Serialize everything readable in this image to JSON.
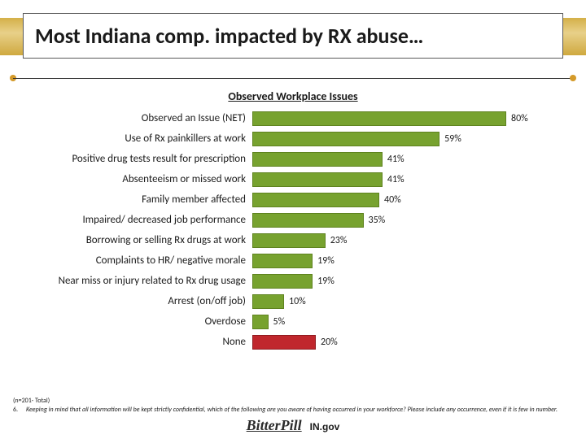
{
  "title": "Most Indiana comp. impacted by RX abuse…",
  "chart": {
    "type": "bar",
    "title": "Observed Workplace Issues",
    "max_value": 100,
    "bar_color": "#77a22f",
    "bar_border": "#5e821f",
    "none_color": "#c0272d",
    "none_border": "#8f1b20",
    "label_fontsize": 13,
    "value_fontsize": 12,
    "rows": [
      {
        "label": "Observed an Issue (NET)",
        "value": 80,
        "valtext": "80%",
        "special": false
      },
      {
        "label": "Use of Rx painkillers at work",
        "value": 59,
        "valtext": "59%",
        "special": false
      },
      {
        "label": "Positive drug tests result for prescription",
        "value": 41,
        "valtext": "41%",
        "special": false
      },
      {
        "label": "Absenteeism or missed work",
        "value": 41,
        "valtext": "41%",
        "special": false
      },
      {
        "label": "Family member affected",
        "value": 40,
        "valtext": "40%",
        "special": false
      },
      {
        "label": "Impaired/ decreased job performance",
        "value": 35,
        "valtext": "35%",
        "special": false
      },
      {
        "label": "Borrowing or selling Rx drugs at work",
        "value": 23,
        "valtext": "23%",
        "special": false
      },
      {
        "label": "Complaints to HR/ negative morale",
        "value": 19,
        "valtext": "19%",
        "special": false
      },
      {
        "label": "Near miss or injury related to Rx drug usage",
        "value": 19,
        "valtext": "19%",
        "special": false
      },
      {
        "label": "Arrest (on/off job)",
        "value": 10,
        "valtext": "10%",
        "special": false
      },
      {
        "label": "Overdose",
        "value": 5,
        "valtext": "5%",
        "special": false
      },
      {
        "label": "None",
        "value": 20,
        "valtext": "20%",
        "special": true
      }
    ]
  },
  "footnotes": {
    "n": "(n=201- Total)",
    "qnum": "6.",
    "qtext": "Keeping in mind that all information will be kept strictly confidential, which of the following are you aware of having occurred in your workforce? Please include any occurrence, even if it is few in number."
  },
  "logos": {
    "brand1": "BitterPill",
    "brand2": "IN.gov"
  }
}
